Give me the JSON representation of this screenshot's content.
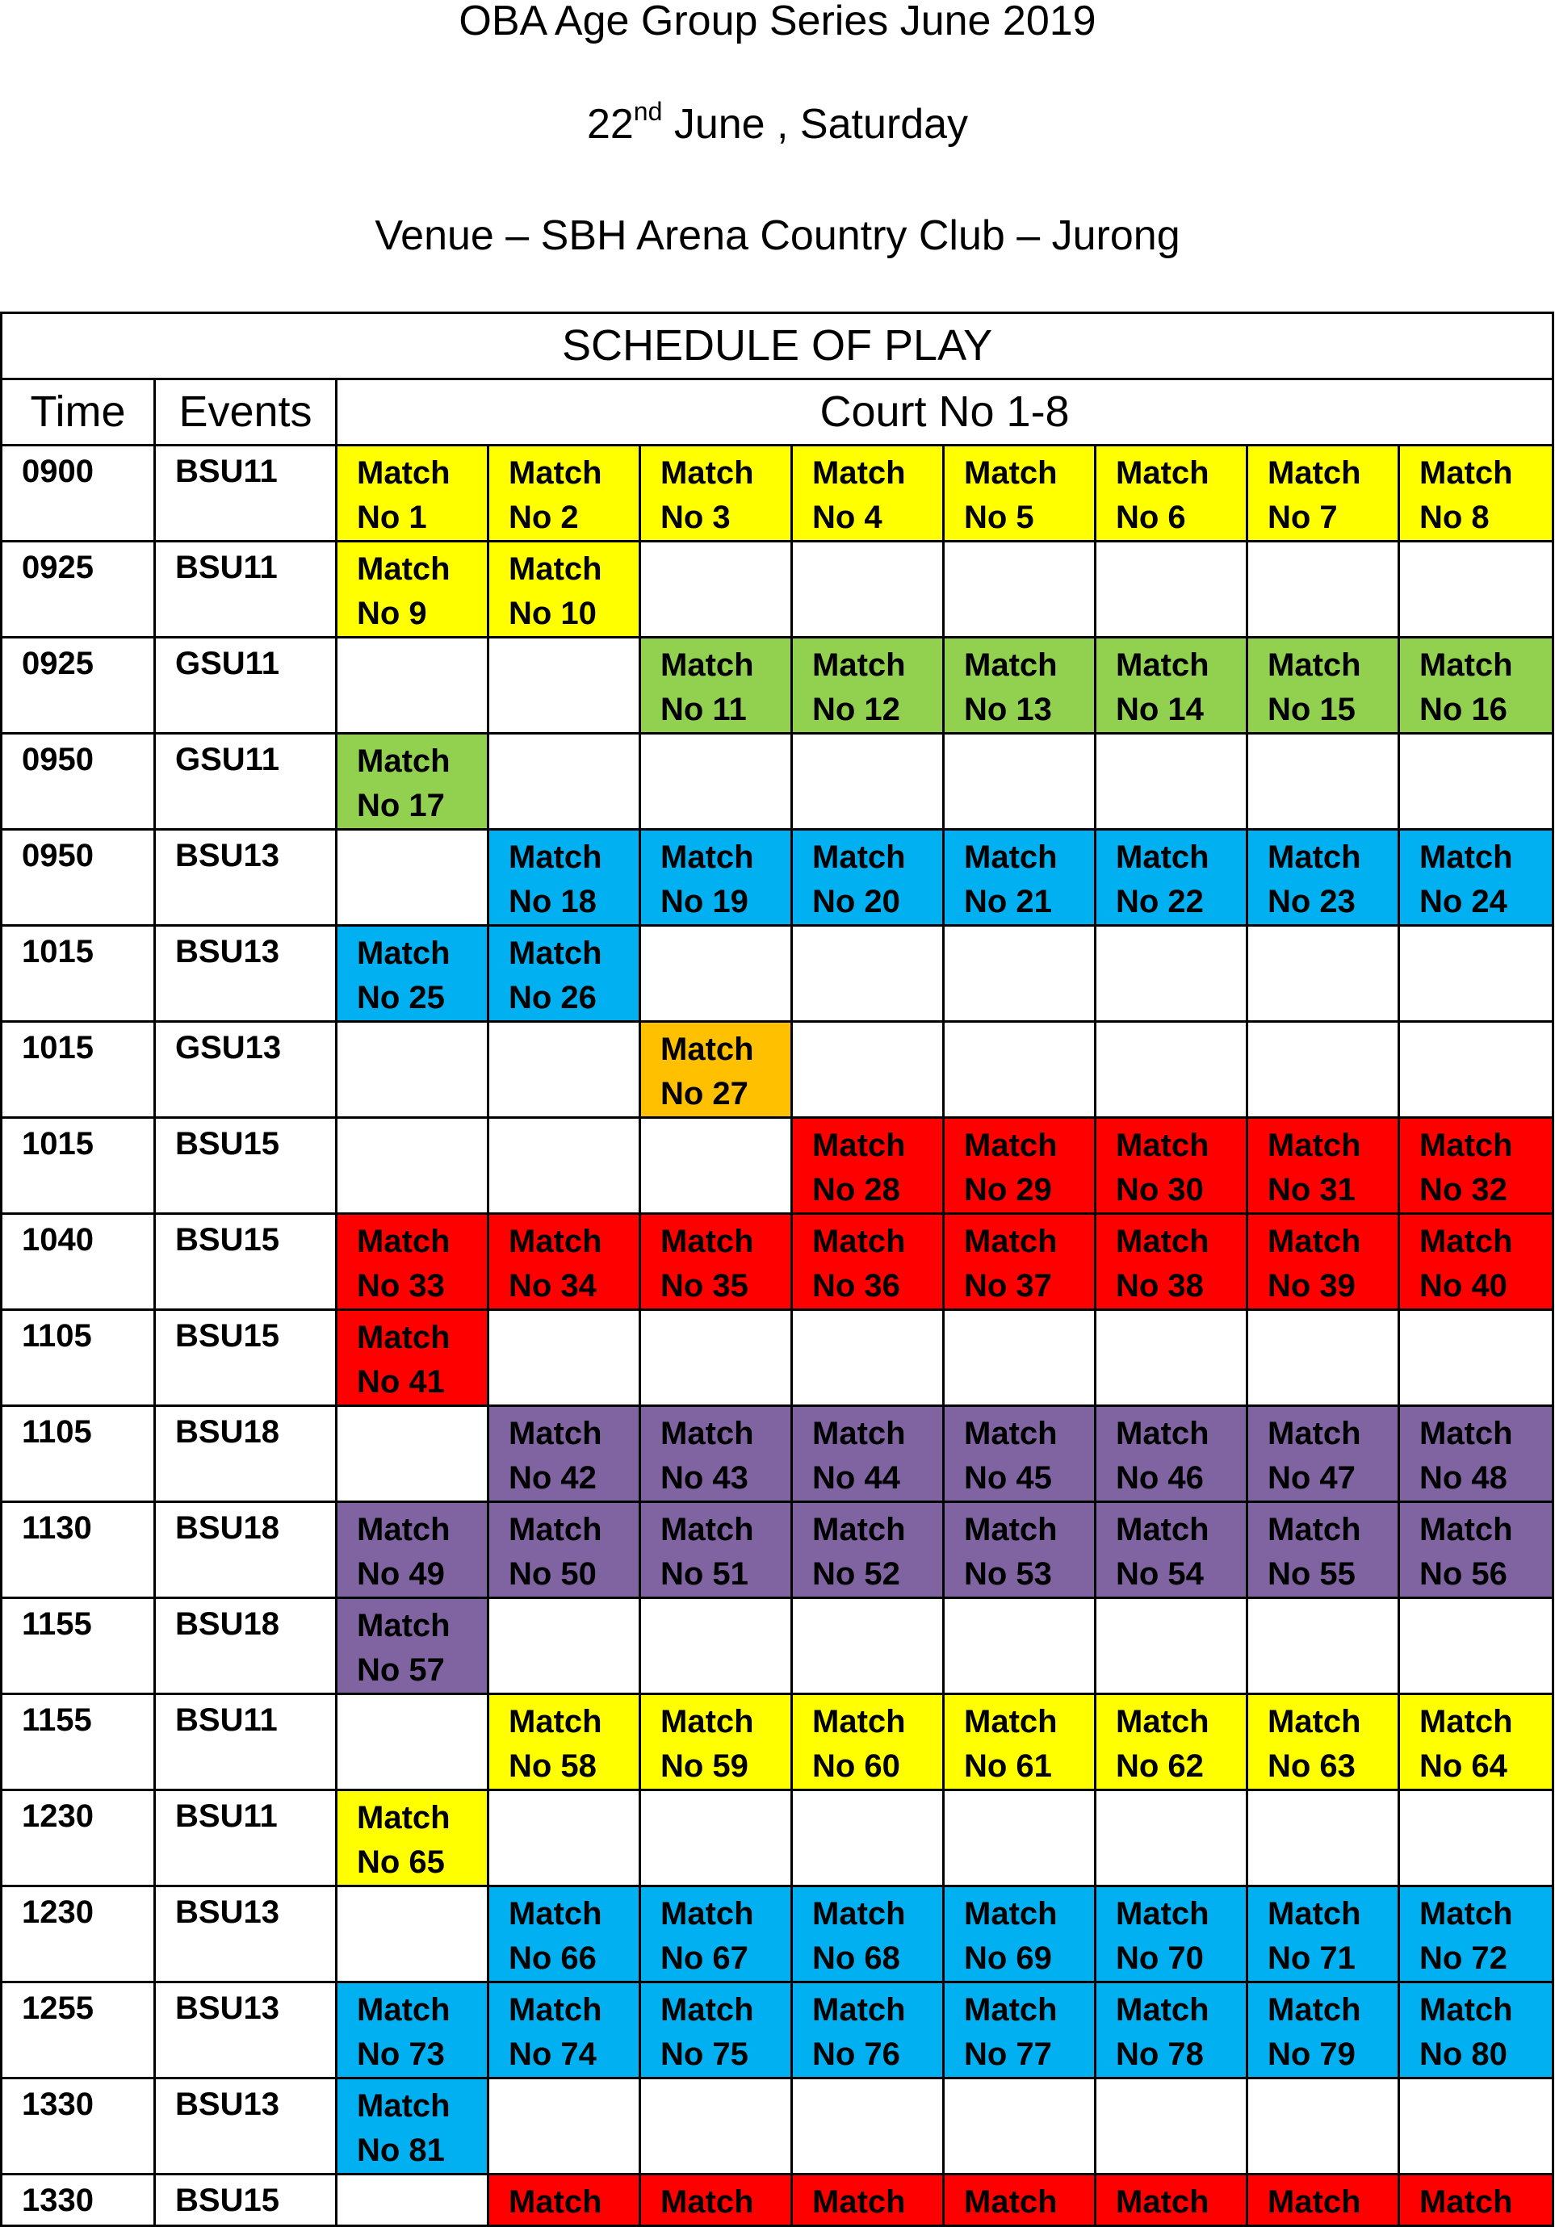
{
  "header": {
    "title": "OBA Age Group Series June 2019",
    "date_day": "22",
    "date_suffix": "nd",
    "date_rest": " June , Saturday",
    "venue": "Venue – SBH Arena Country Club – Jurong"
  },
  "table": {
    "title": "SCHEDULE OF PLAY",
    "col_time": "Time",
    "col_events": "Events",
    "col_courts": "Court No 1-8",
    "match_word": "Match",
    "colors": {
      "BSU11": "#ffff00",
      "GSU11": "#92d050",
      "BSU13": "#00b0f0",
      "GSU13": "#ffc000",
      "BSU15": "#ff0000",
      "BSU18": "#8064a2"
    },
    "rows": [
      {
        "time": "0900",
        "event": "BSU11",
        "color": "y",
        "cells": [
          "No 1",
          "No 2",
          "No 3",
          "No 4",
          "No 5",
          "No 6",
          "No 7",
          "No 8"
        ]
      },
      {
        "time": "0925",
        "event": "BSU11",
        "color": "y",
        "cells": [
          "No 9",
          "No 10",
          "",
          "",
          "",
          "",
          "",
          ""
        ]
      },
      {
        "time": "0925",
        "event": "GSU11",
        "color": "g",
        "cells": [
          "",
          "",
          "No 11",
          "No 12",
          "No 13",
          "No 14",
          "No 15",
          "No 16"
        ]
      },
      {
        "time": "0950",
        "event": "GSU11",
        "color": "g",
        "cells": [
          "No 17",
          "",
          "",
          "",
          "",
          "",
          "",
          ""
        ]
      },
      {
        "time": "0950",
        "event": "BSU13",
        "color": "b",
        "cells": [
          "",
          "No 18",
          "No 19",
          "No 20",
          "No 21",
          "No 22",
          "No 23",
          "No 24"
        ]
      },
      {
        "time": "1015",
        "event": "BSU13",
        "color": "b",
        "cells": [
          "No 25",
          "No 26",
          "",
          "",
          "",
          "",
          "",
          ""
        ]
      },
      {
        "time": "1015",
        "event": "GSU13",
        "color": "o",
        "cells": [
          "",
          "",
          "No 27",
          "",
          "",
          "",
          "",
          ""
        ]
      },
      {
        "time": "1015",
        "event": "BSU15",
        "color": "r",
        "cells": [
          "",
          "",
          "",
          "No 28",
          "No 29",
          "No 30",
          "No 31",
          "No 32"
        ]
      },
      {
        "time": "1040",
        "event": "BSU15",
        "color": "r",
        "cells": [
          "No 33",
          "No 34",
          "No 35",
          "No 36",
          "No 37",
          "No 38",
          "No 39",
          "No 40"
        ]
      },
      {
        "time": "1105",
        "event": "BSU15",
        "color": "r",
        "cells": [
          "No 41",
          "",
          "",
          "",
          "",
          "",
          "",
          ""
        ]
      },
      {
        "time": "1105",
        "event": "BSU18",
        "color": "p",
        "cells": [
          "",
          "No 42",
          "No 43",
          "No 44",
          "No 45",
          "No 46",
          "No 47",
          "No 48"
        ]
      },
      {
        "time": "1130",
        "event": "BSU18",
        "color": "p",
        "cells": [
          "No 49",
          "No 50",
          "No 51",
          "No 52",
          "No 53",
          "No 54",
          "No 55",
          "No 56"
        ]
      },
      {
        "time": "1155",
        "event": "BSU18",
        "color": "p",
        "cells": [
          "No 57",
          "",
          "",
          "",
          "",
          "",
          "",
          ""
        ]
      },
      {
        "time": "1155",
        "event": "BSU11",
        "color": "y",
        "cells": [
          "",
          "No 58",
          "No 59",
          "No 60",
          "No 61",
          "No 62",
          "No 63",
          "No 64"
        ]
      },
      {
        "time": "1230",
        "event": "BSU11",
        "color": "y",
        "cells": [
          "No 65",
          "",
          "",
          "",
          "",
          "",
          "",
          ""
        ]
      },
      {
        "time": "1230",
        "event": "BSU13",
        "color": "b",
        "cells": [
          "",
          "No 66",
          "No 67",
          "No 68",
          "No 69",
          "No 70",
          "No 71",
          "No 72"
        ]
      },
      {
        "time": "1255",
        "event": "BSU13",
        "color": "b",
        "cells": [
          "No 73",
          "No 74",
          "No 75",
          "No 76",
          "No 77",
          "No 78",
          "No 79",
          "No 80"
        ]
      },
      {
        "time": "1330",
        "event": "BSU13",
        "color": "b",
        "cells": [
          "No 81",
          "",
          "",
          "",
          "",
          "",
          "",
          ""
        ]
      },
      {
        "time": "1330",
        "event": "BSU15",
        "color": "r",
        "cells": [
          "",
          "Match",
          "Match",
          "Match",
          "Match",
          "Match",
          "Match",
          "Match"
        ],
        "partial": true
      }
    ]
  }
}
